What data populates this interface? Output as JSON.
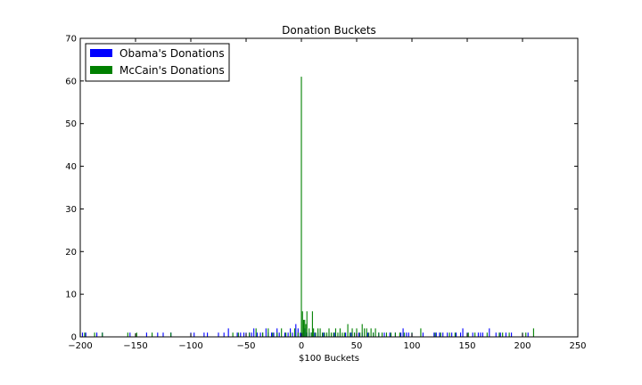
{
  "chart_data": {
    "type": "bar",
    "title": "Donation Buckets",
    "xlabel": "$100 Buckets",
    "ylabel": "",
    "xlim": [
      -200,
      250
    ],
    "ylim": [
      0,
      70
    ],
    "xticks": [
      -200,
      -150,
      -100,
      -50,
      0,
      50,
      100,
      150,
      200,
      250
    ],
    "yticks": [
      0,
      10,
      20,
      30,
      40,
      50,
      60,
      70
    ],
    "xtick_labels": [
      "−200",
      "−150",
      "−100",
      "−50",
      "0",
      "50",
      "100",
      "150",
      "200",
      "250"
    ],
    "ytick_labels": [
      "0",
      "10",
      "20",
      "30",
      "40",
      "50",
      "60",
      "70"
    ],
    "grid": false,
    "legend": "top-left",
    "series": [
      {
        "name": "Obama's Donations",
        "color": "#0000ff",
        "x": [
          -198,
          -195,
          -185,
          -180,
          -155,
          -140,
          -130,
          -125,
          -118,
          -100,
          -97,
          -88,
          -85,
          -75,
          -70,
          -66,
          -58,
          -55,
          -52,
          -50,
          -47,
          -45,
          -43,
          -40,
          -37,
          -35,
          -32,
          -30,
          -27,
          -25,
          -22,
          -20,
          -15,
          -12,
          -10,
          -8,
          -6,
          -5,
          -3,
          -1,
          1,
          3,
          5,
          7,
          9,
          12,
          15,
          20,
          25,
          30,
          35,
          40,
          45,
          48,
          50,
          52,
          55,
          60,
          65,
          70,
          75,
          80,
          85,
          90,
          92,
          95,
          97,
          100,
          110,
          120,
          122,
          125,
          128,
          132,
          136,
          140,
          144,
          146,
          150,
          155,
          160,
          162,
          164,
          170,
          176,
          180,
          185,
          190,
          200,
          205
        ],
        "values": [
          1,
          1,
          1,
          1,
          1,
          1,
          1,
          1,
          1,
          1,
          1,
          1,
          1,
          1,
          1,
          2,
          1,
          1,
          1,
          1,
          1,
          1,
          2,
          1,
          1,
          1,
          2,
          1,
          1,
          1,
          2,
          1,
          1,
          1,
          2,
          1,
          1,
          3,
          2,
          1,
          1,
          2,
          1,
          1,
          1,
          1,
          1,
          1,
          1,
          1,
          1,
          1,
          1,
          1,
          1,
          1,
          1,
          1,
          1,
          1,
          1,
          1,
          1,
          1,
          2,
          1,
          1,
          1,
          1,
          1,
          1,
          1,
          1,
          1,
          1,
          1,
          1,
          2,
          1,
          1,
          1,
          1,
          1,
          2,
          1,
          1,
          1,
          1,
          1,
          1
        ]
      },
      {
        "name": "McCain's Donations",
        "color": "#008000",
        "x": [
          -200,
          -196,
          -187,
          -180,
          -157,
          -149,
          -135,
          -118,
          -62,
          -57,
          -47,
          -41,
          -35,
          -30,
          -26,
          -22,
          -18,
          -14,
          -10,
          -6,
          -3,
          0,
          1,
          2,
          3,
          4,
          5,
          7,
          9,
          10,
          11,
          13,
          15,
          17,
          19,
          21,
          23,
          25,
          27,
          29,
          31,
          33,
          35,
          37,
          39,
          42,
          44,
          46,
          48,
          50,
          53,
          55,
          57,
          59,
          61,
          63,
          65,
          67,
          70,
          73,
          77,
          81,
          85,
          89,
          93,
          100,
          108,
          121,
          126,
          134,
          139,
          151,
          157,
          168,
          179,
          182,
          188,
          200,
          203,
          210
        ],
        "values": [
          1,
          1,
          1,
          1,
          1,
          1,
          1,
          1,
          1,
          1,
          1,
          2,
          1,
          2,
          1,
          1,
          2,
          1,
          1,
          2,
          1,
          61,
          6,
          4,
          4,
          3,
          6,
          2,
          1,
          6,
          2,
          1,
          2,
          2,
          1,
          1,
          1,
          2,
          1,
          1,
          2,
          1,
          2,
          1,
          1,
          3,
          1,
          2,
          1,
          2,
          1,
          3,
          2,
          2,
          1,
          2,
          1,
          2,
          1,
          1,
          1,
          1,
          1,
          1,
          1,
          1,
          2,
          1,
          1,
          1,
          1,
          1,
          1,
          1,
          1,
          1,
          1,
          1,
          1,
          2
        ]
      }
    ]
  }
}
